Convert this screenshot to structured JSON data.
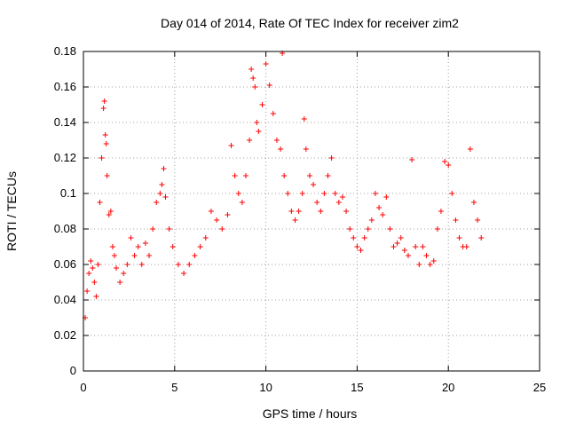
{
  "chart_data": {
    "type": "scatter",
    "title": "Day 014 of 2014, Rate Of TEC Index for receiver zim2",
    "xlabel": "GPS time / hours",
    "ylabel": "ROTI / TECUs",
    "xlim": [
      0,
      25
    ],
    "ylim": [
      0,
      0.18
    ],
    "x_ticks": [
      0,
      5,
      10,
      15,
      20,
      25
    ],
    "x_tick_labels": [
      "0",
      "5",
      "10",
      "15",
      "20",
      "25"
    ],
    "y_ticks": [
      0,
      0.02,
      0.04,
      0.06,
      0.08,
      0.1,
      0.12,
      0.14,
      0.16,
      0.18
    ],
    "y_tick_labels": [
      "0",
      "0.02",
      "0.04",
      "0.06",
      "0.08",
      "0.1",
      "0.12",
      "0.14",
      "0.16",
      "0.18"
    ],
    "grid": true,
    "marker": "plus",
    "series": [
      {
        "name": "zim2",
        "color": "#ff0000",
        "x": [
          0.1,
          0.2,
          0.3,
          0.4,
          0.5,
          0.6,
          0.7,
          0.8,
          0.9,
          1.0,
          1.1,
          1.15,
          1.2,
          1.25,
          1.3,
          1.4,
          1.5,
          1.6,
          1.7,
          1.8,
          2.0,
          2.2,
          2.4,
          2.6,
          2.8,
          3.0,
          3.2,
          3.4,
          3.6,
          3.8,
          4.0,
          4.2,
          4.3,
          4.4,
          4.5,
          4.7,
          4.9,
          5.2,
          5.5,
          5.8,
          6.1,
          6.4,
          6.7,
          7.0,
          7.3,
          7.6,
          7.9,
          8.1,
          8.3,
          8.5,
          8.7,
          8.9,
          9.1,
          9.2,
          9.3,
          9.4,
          9.5,
          9.6,
          9.8,
          10.0,
          10.2,
          10.4,
          10.6,
          10.8,
          10.9,
          11.0,
          11.2,
          11.4,
          11.6,
          11.8,
          12.0,
          12.1,
          12.2,
          12.4,
          12.6,
          12.8,
          13.0,
          13.2,
          13.4,
          13.6,
          13.8,
          14.0,
          14.2,
          14.4,
          14.6,
          14.8,
          15.0,
          15.2,
          15.4,
          15.6,
          15.8,
          16.0,
          16.2,
          16.4,
          16.6,
          16.8,
          17.0,
          17.2,
          17.4,
          17.6,
          17.8,
          18.0,
          18.2,
          18.4,
          18.6,
          18.8,
          19.0,
          19.2,
          19.4,
          19.6,
          19.8,
          20.0,
          20.2,
          20.4,
          20.6,
          20.8,
          21.0,
          21.2,
          21.4,
          21.6,
          21.8
        ],
        "y": [
          0.03,
          0.045,
          0.055,
          0.062,
          0.058,
          0.05,
          0.042,
          0.06,
          0.095,
          0.12,
          0.148,
          0.152,
          0.133,
          0.128,
          0.11,
          0.088,
          0.09,
          0.07,
          0.065,
          0.058,
          0.05,
          0.055,
          0.06,
          0.075,
          0.065,
          0.07,
          0.06,
          0.072,
          0.065,
          0.08,
          0.095,
          0.1,
          0.105,
          0.114,
          0.098,
          0.08,
          0.07,
          0.06,
          0.055,
          0.06,
          0.065,
          0.07,
          0.075,
          0.09,
          0.085,
          0.08,
          0.088,
          0.127,
          0.11,
          0.1,
          0.095,
          0.11,
          0.13,
          0.17,
          0.165,
          0.16,
          0.14,
          0.135,
          0.15,
          0.173,
          0.161,
          0.145,
          0.13,
          0.125,
          0.179,
          0.11,
          0.1,
          0.09,
          0.085,
          0.09,
          0.1,
          0.142,
          0.125,
          0.11,
          0.105,
          0.095,
          0.09,
          0.1,
          0.11,
          0.12,
          0.1,
          0.095,
          0.098,
          0.09,
          0.08,
          0.075,
          0.07,
          0.068,
          0.075,
          0.08,
          0.085,
          0.1,
          0.092,
          0.088,
          0.098,
          0.08,
          0.07,
          0.072,
          0.075,
          0.068,
          0.065,
          0.119,
          0.07,
          0.06,
          0.07,
          0.065,
          0.06,
          0.062,
          0.08,
          0.09,
          0.118,
          0.116,
          0.1,
          0.085,
          0.075,
          0.07,
          0.07,
          0.125,
          0.095,
          0.085,
          0.075
        ]
      }
    ]
  }
}
